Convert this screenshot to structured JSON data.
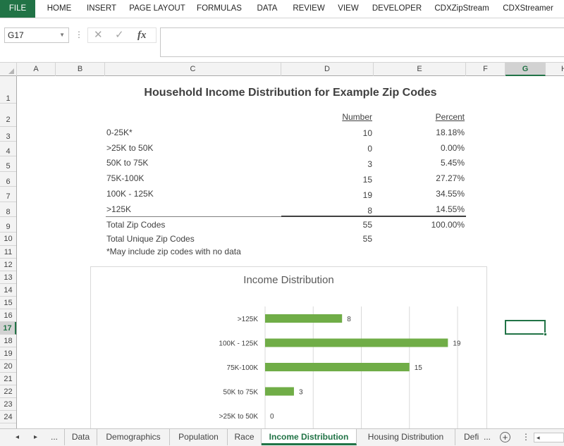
{
  "ribbon": {
    "tabs": [
      "FILE",
      "HOME",
      "INSERT",
      "PAGE LAYOUT",
      "FORMULAS",
      "DATA",
      "REVIEW",
      "VIEW",
      "DEVELOPER",
      "CDXZipStream",
      "CDXStreamer"
    ]
  },
  "formula_bar": {
    "name_box": "G17",
    "fx_label": "fx",
    "value": ""
  },
  "columns": [
    "A",
    "B",
    "C",
    "D",
    "E",
    "F",
    "G",
    "H"
  ],
  "selected_column": "G",
  "rows": [
    "1",
    "2",
    "3",
    "4",
    "5",
    "6",
    "7",
    "8",
    "9",
    "10",
    "11",
    "12",
    "13",
    "14",
    "15",
    "16",
    "17",
    "18",
    "19",
    "20",
    "21",
    "22",
    "23",
    "24"
  ],
  "selected_row": "17",
  "sheet": {
    "title": "Household Income Distribution for Example Zip Codes",
    "headers": {
      "number": "Number",
      "percent": "Percent"
    },
    "table": [
      {
        "label": "0-25K*",
        "number": "10",
        "percent": "18.18%"
      },
      {
        "label": ">25K to 50K",
        "number": "0",
        "percent": "0.00%"
      },
      {
        "label": "50K to 75K",
        "number": "3",
        "percent": "5.45%"
      },
      {
        "label": "75K-100K",
        "number": "15",
        "percent": "27.27%"
      },
      {
        "label": "100K - 125K",
        "number": "19",
        "percent": "34.55%"
      },
      {
        "label": ">125K",
        "number": "8",
        "percent": "14.55%"
      }
    ],
    "totals": [
      {
        "label": "Total Zip Codes",
        "number": "55",
        "percent": "100.00%"
      },
      {
        "label": "Total Unique Zip Codes",
        "number": "55",
        "percent": ""
      }
    ],
    "footnote": "*May include zip codes with no data"
  },
  "chart_data": {
    "type": "bar",
    "orientation": "horizontal",
    "title": "Income Distribution",
    "categories": [
      ">125K",
      "100K - 125K",
      "75K-100K",
      "50K to 75K",
      ">25K to 50K"
    ],
    "values": [
      8,
      19,
      15,
      3,
      0
    ],
    "xlim": [
      0,
      20
    ],
    "grid": true,
    "bar_color": "#70ad47"
  },
  "sheet_tabs": {
    "nav_prev": "◂",
    "nav_next": "▸",
    "more": "...",
    "items": [
      "Data",
      "Demographics",
      "Population",
      "Race",
      "Income Distribution",
      "Housing Distribution",
      "Defi"
    ],
    "active": "Income Distribution",
    "more_right": "...",
    "add": "+",
    "options": "⋮"
  },
  "colors": {
    "accent": "#217346",
    "chart_bar": "#70ad47"
  }
}
